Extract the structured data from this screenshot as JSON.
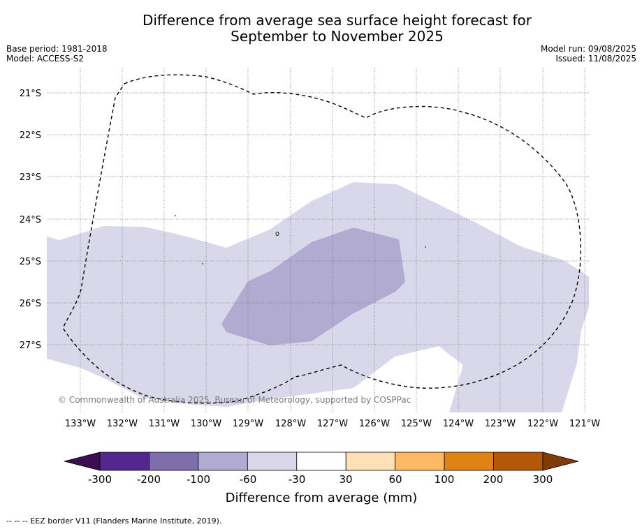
{
  "title_line1": "Difference from average sea surface height forecast for",
  "title_line2": "September to November 2025",
  "meta_left": {
    "base_period": "Base period: 1981-2018",
    "model": "Model: ACCESS-S2"
  },
  "meta_right": {
    "model_run": "Model run: 09/08/2025",
    "issued": "Issued: 11/08/2025"
  },
  "map": {
    "lon_labels": [
      "133°W",
      "132°W",
      "131°W",
      "130°W",
      "129°W",
      "128°W",
      "127°W",
      "126°W",
      "125°W",
      "124°W",
      "123°W",
      "122°W",
      "121°W"
    ],
    "lat_labels": [
      "21°S",
      "22°S",
      "23°S",
      "24°S",
      "25°S",
      "26°S",
      "27°S"
    ],
    "copyright": "© Commonwealth of Australia 2025, Bureau of Meteorology, supported by COSPPac"
  },
  "colorbar": {
    "tick_labels": [
      "-300",
      "-200",
      "-100",
      "-60",
      "-30",
      "30",
      "60",
      "100",
      "200",
      "300"
    ],
    "label": "Difference from average (mm)",
    "colors": [
      "#3b0f4f",
      "#54278f",
      "#7e6fac",
      "#b1aad1",
      "#d8d8ea",
      "#ffffff",
      "#fee0b6",
      "#fdb863",
      "#e08214",
      "#b35806",
      "#7f3b08"
    ]
  },
  "footer": {
    "legend_dash": "-- -- --",
    "text": "EEZ border V11 (Flanders Marine Institute, 2019)."
  }
}
